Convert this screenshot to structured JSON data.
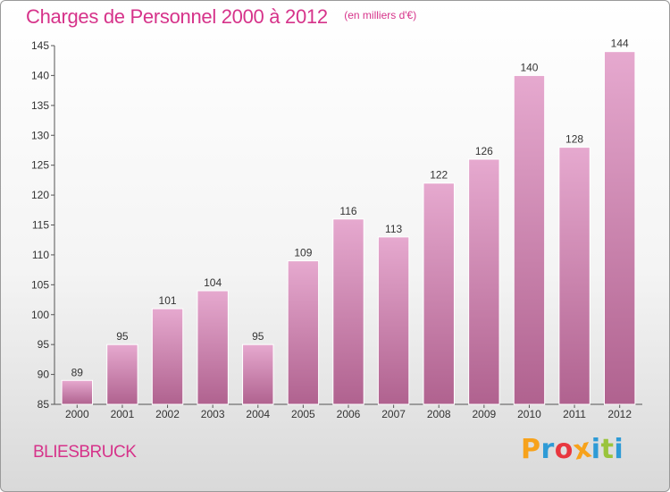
{
  "header": {
    "title": "Charges de Personnel 2000 à 2012",
    "subtitle": "(en milliers d'€)"
  },
  "footer": {
    "commune": "BLIESBRUCK",
    "brand": "Proxiti",
    "brand_colors": [
      "#f7a21b",
      "#2e9bd6",
      "#e8373f",
      "#f7a21b",
      "#2e9bd6",
      "#9ac43c",
      "#2e9bd6"
    ]
  },
  "colors": {
    "bar_top": "#e6a9cf",
    "bar_bottom": "#b0628f",
    "accent": "#d6338a"
  },
  "chart_data": {
    "type": "bar",
    "categories": [
      "2000",
      "2001",
      "2002",
      "2003",
      "2004",
      "2005",
      "2006",
      "2007",
      "2008",
      "2009",
      "2010",
      "2011",
      "2012"
    ],
    "values": [
      89,
      95,
      101,
      104,
      95,
      109,
      116,
      113,
      122,
      126,
      140,
      128,
      144
    ],
    "title": "Charges de Personnel 2000 à 2012",
    "subtitle": "(en milliers d'€)",
    "xlabel": "",
    "ylabel": "",
    "ylim": [
      85,
      145
    ],
    "yticks": [
      85,
      90,
      95,
      100,
      105,
      110,
      115,
      120,
      125,
      130,
      135,
      140,
      145
    ],
    "grid": false,
    "data_labels": true
  }
}
